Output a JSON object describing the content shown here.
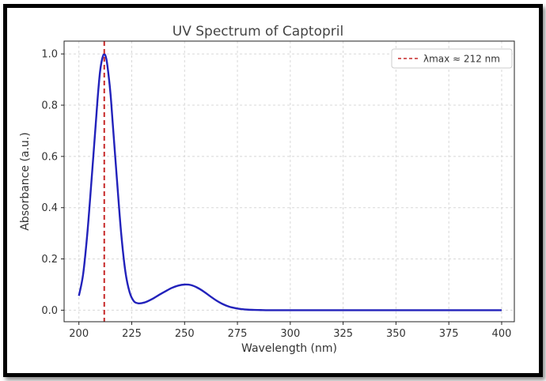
{
  "chart_data": {
    "type": "line",
    "title": "UV Spectrum of Captopril",
    "xlabel": "Wavelength (nm)",
    "ylabel": "Absorbance (a.u.)",
    "xlim": [
      193,
      406
    ],
    "ylim": [
      -0.045,
      1.05
    ],
    "x_ticks": [
      200,
      225,
      250,
      275,
      300,
      325,
      350,
      375,
      400
    ],
    "y_ticks": [
      0.0,
      0.2,
      0.4,
      0.6,
      0.8,
      1.0
    ],
    "x_tick_labels": [
      "200",
      "225",
      "250",
      "275",
      "300",
      "325",
      "350",
      "375",
      "400"
    ],
    "y_tick_labels": [
      "0.0",
      "0.2",
      "0.4",
      "0.6",
      "0.8",
      "1.0"
    ],
    "grid": true,
    "legend_position": "top-right",
    "series": [
      {
        "color": "#2222bb",
        "x": [
          200,
          202,
          204,
          206,
          208,
          209,
          210,
          211,
          212,
          213,
          214,
          215,
          216,
          218,
          220,
          222,
          224,
          226,
          228,
          230,
          232,
          235,
          238,
          241,
          244,
          247,
          250,
          253,
          256,
          259,
          262,
          265,
          268,
          271,
          274,
          277,
          280,
          283,
          286,
          290,
          300,
          320,
          340,
          360,
          380,
          400
        ],
        "y": [
          0.056,
          0.14,
          0.3,
          0.51,
          0.73,
          0.84,
          0.93,
          0.98,
          1.0,
          0.98,
          0.92,
          0.84,
          0.73,
          0.51,
          0.3,
          0.15,
          0.07,
          0.035,
          0.027,
          0.028,
          0.033,
          0.045,
          0.06,
          0.074,
          0.087,
          0.096,
          0.1,
          0.098,
          0.088,
          0.073,
          0.055,
          0.038,
          0.024,
          0.014,
          0.008,
          0.004,
          0.002,
          0.001,
          0.0005,
          0.0,
          0.0,
          0.0,
          0.0,
          0.0,
          0.0,
          0.0
        ]
      }
    ],
    "annotations": [
      {
        "type": "vline",
        "x": 212,
        "color": "#c62828",
        "label": "λmax ≈ 212 nm"
      }
    ]
  }
}
